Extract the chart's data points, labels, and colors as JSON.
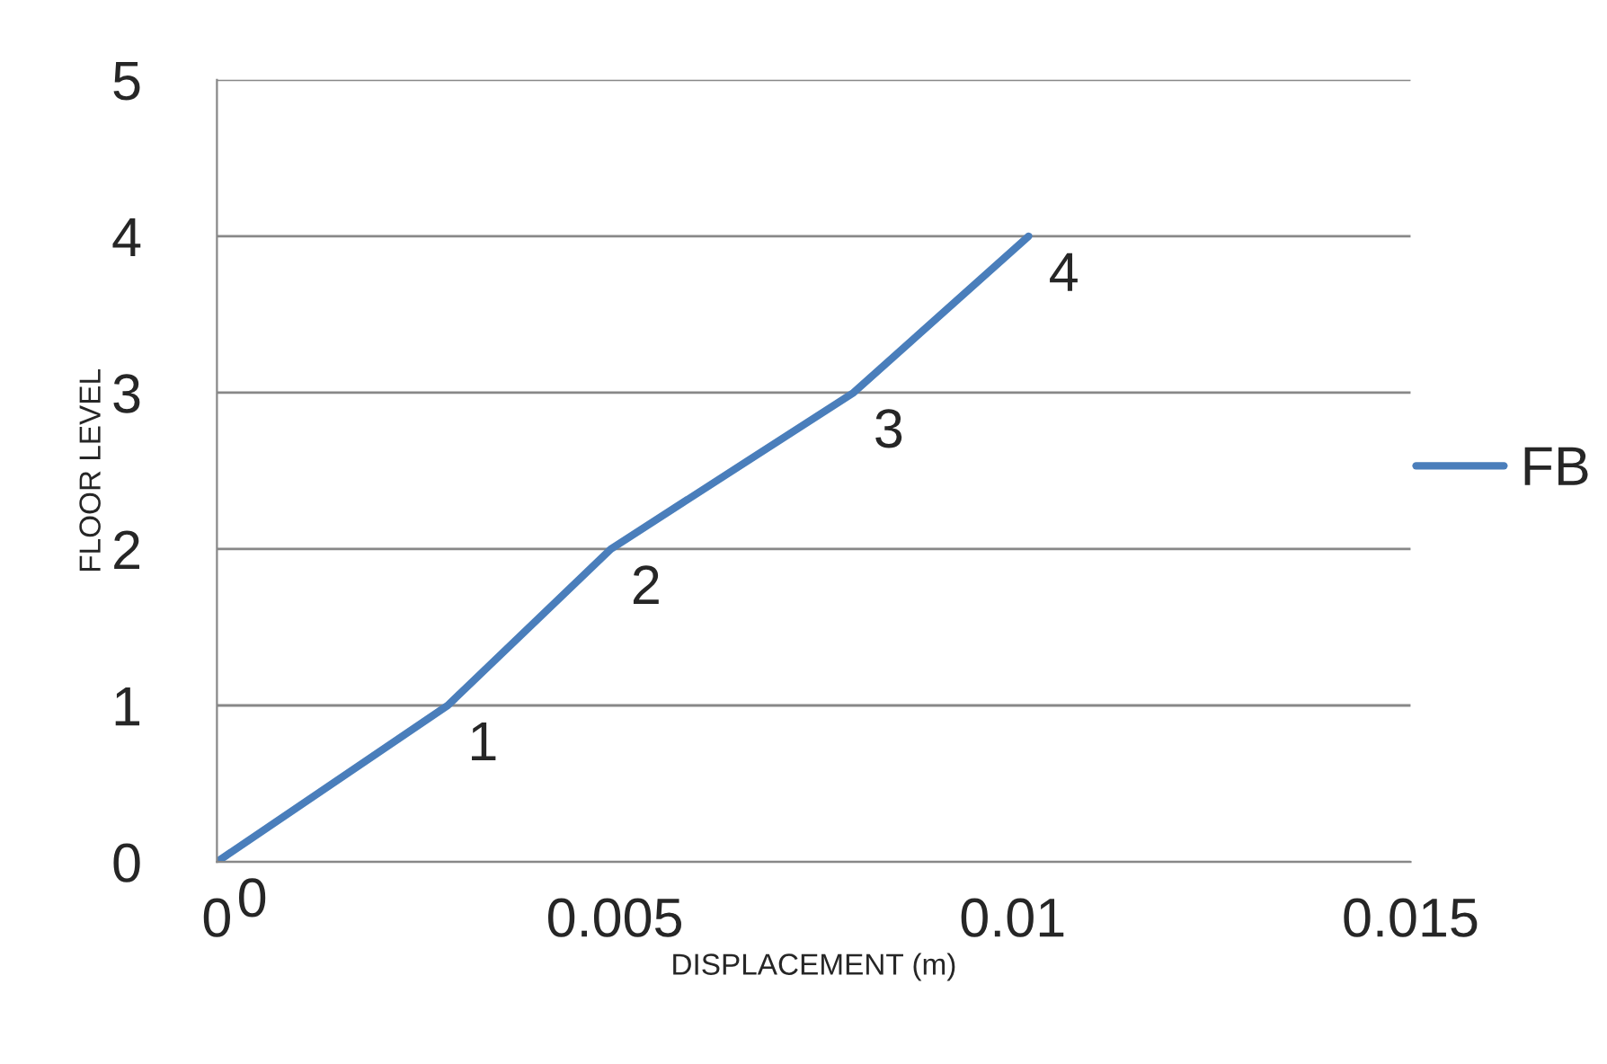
{
  "chart_data": {
    "type": "line",
    "xlabel": "DISPLACEMENT (m)",
    "ylabel": "FLOOR LEVEL",
    "x": [
      0,
      0.0029,
      0.00495,
      0.008,
      0.0102
    ],
    "series": [
      {
        "name": "FB",
        "color": "#4a7ebb",
        "values": [
          0,
          1,
          2,
          3,
          4
        ]
      }
    ],
    "xlim": [
      0,
      0.015
    ],
    "xticks": [
      0,
      0.005,
      0.01,
      0.015
    ],
    "ylim": [
      0,
      5
    ],
    "yticks": [
      0,
      1,
      2,
      3,
      4,
      5
    ],
    "grid": "y",
    "legend": "right",
    "data_labels": true,
    "marker": "none",
    "line_style": "solid"
  }
}
